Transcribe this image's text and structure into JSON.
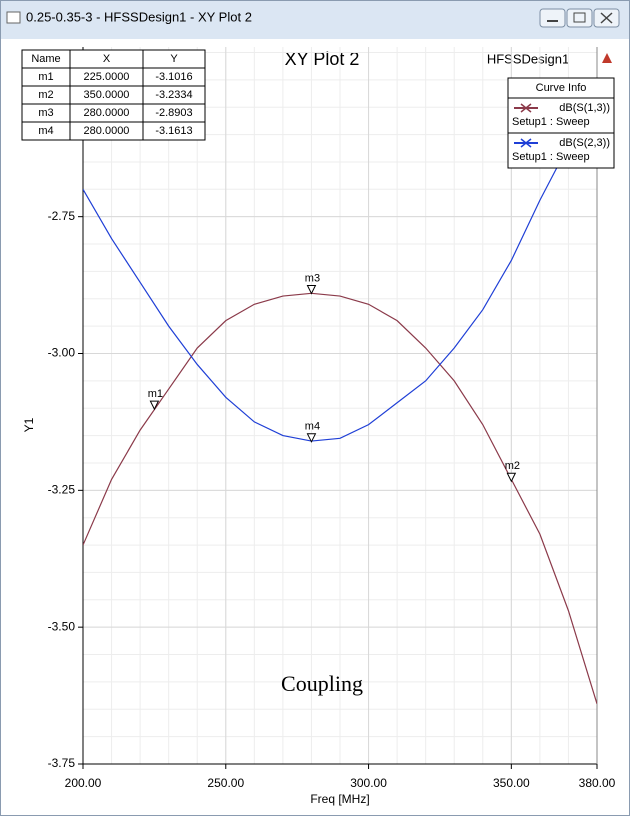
{
  "window": {
    "title": "0.25-0.35-3 - HFSSDesign1 - XY Plot 2"
  },
  "chart_data": {
    "type": "line",
    "title": "XY Plot 2",
    "design": "HFSSDesign1",
    "xlabel": "Freq [MHz]",
    "ylabel": "Y1",
    "annotation": "Coupling",
    "legend_title": "Curve Info",
    "legend": "upper right",
    "x": [
      200,
      210,
      220,
      230,
      240,
      250,
      260,
      270,
      280,
      290,
      300,
      310,
      320,
      330,
      340,
      350,
      360,
      370,
      380
    ],
    "series": [
      {
        "name": "dB(S(1,3))",
        "solution": "Setup1 : Sweep",
        "color": "#8b3a4a",
        "values": [
          -3.35,
          -3.23,
          -3.14,
          -3.065,
          -2.99,
          -2.94,
          -2.91,
          -2.895,
          -2.89,
          -2.895,
          -2.91,
          -2.94,
          -2.99,
          -3.05,
          -3.13,
          -3.23,
          -3.33,
          -3.47,
          -3.64
        ]
      },
      {
        "name": "dB(S(2,3))",
        "solution": "Setup1 : Sweep",
        "color": "#1f3fd6",
        "values": [
          -2.7,
          -2.79,
          -2.87,
          -2.95,
          -3.02,
          -3.08,
          -3.125,
          -3.15,
          -3.16,
          -3.155,
          -3.13,
          -3.09,
          -3.05,
          -2.99,
          -2.92,
          -2.83,
          -2.72,
          -2.62,
          -2.5
        ]
      }
    ],
    "marker_table_headers": [
      "Name",
      "X",
      "Y"
    ],
    "markers": [
      {
        "name": "m1",
        "x": 225,
        "y": -3.1016,
        "x_label": "225.0000",
        "y_label": "-3.1016"
      },
      {
        "name": "m2",
        "x": 350,
        "y": -3.2334,
        "x_label": "350.0000",
        "y_label": "-3.2334"
      },
      {
        "name": "m3",
        "x": 280,
        "y": -2.8903,
        "x_label": "280.0000",
        "y_label": "-2.8903"
      },
      {
        "name": "m4",
        "x": 280,
        "y": -3.1613,
        "x_label": "280.0000",
        "y_label": "-3.1613"
      }
    ],
    "xlim": [
      200,
      380
    ],
    "xticks": [
      {
        "value": 200,
        "label": "200.00"
      },
      {
        "value": 250,
        "label": "250.00"
      },
      {
        "value": 300,
        "label": "300.00"
      },
      {
        "value": 350,
        "label": "350.00"
      },
      {
        "value": 380,
        "label": "380.00"
      }
    ],
    "ylim": [
      -3.75,
      -2.44
    ],
    "yticks": [
      -3.75,
      {
        "value": -3.5,
        "label": "-3.50"
      },
      -3.25,
      {
        "value": -3.0,
        "label": "-3.00"
      },
      -2.75
    ],
    "grid": true,
    "x_minor_step": 10,
    "y_minor_step": 0.05
  }
}
